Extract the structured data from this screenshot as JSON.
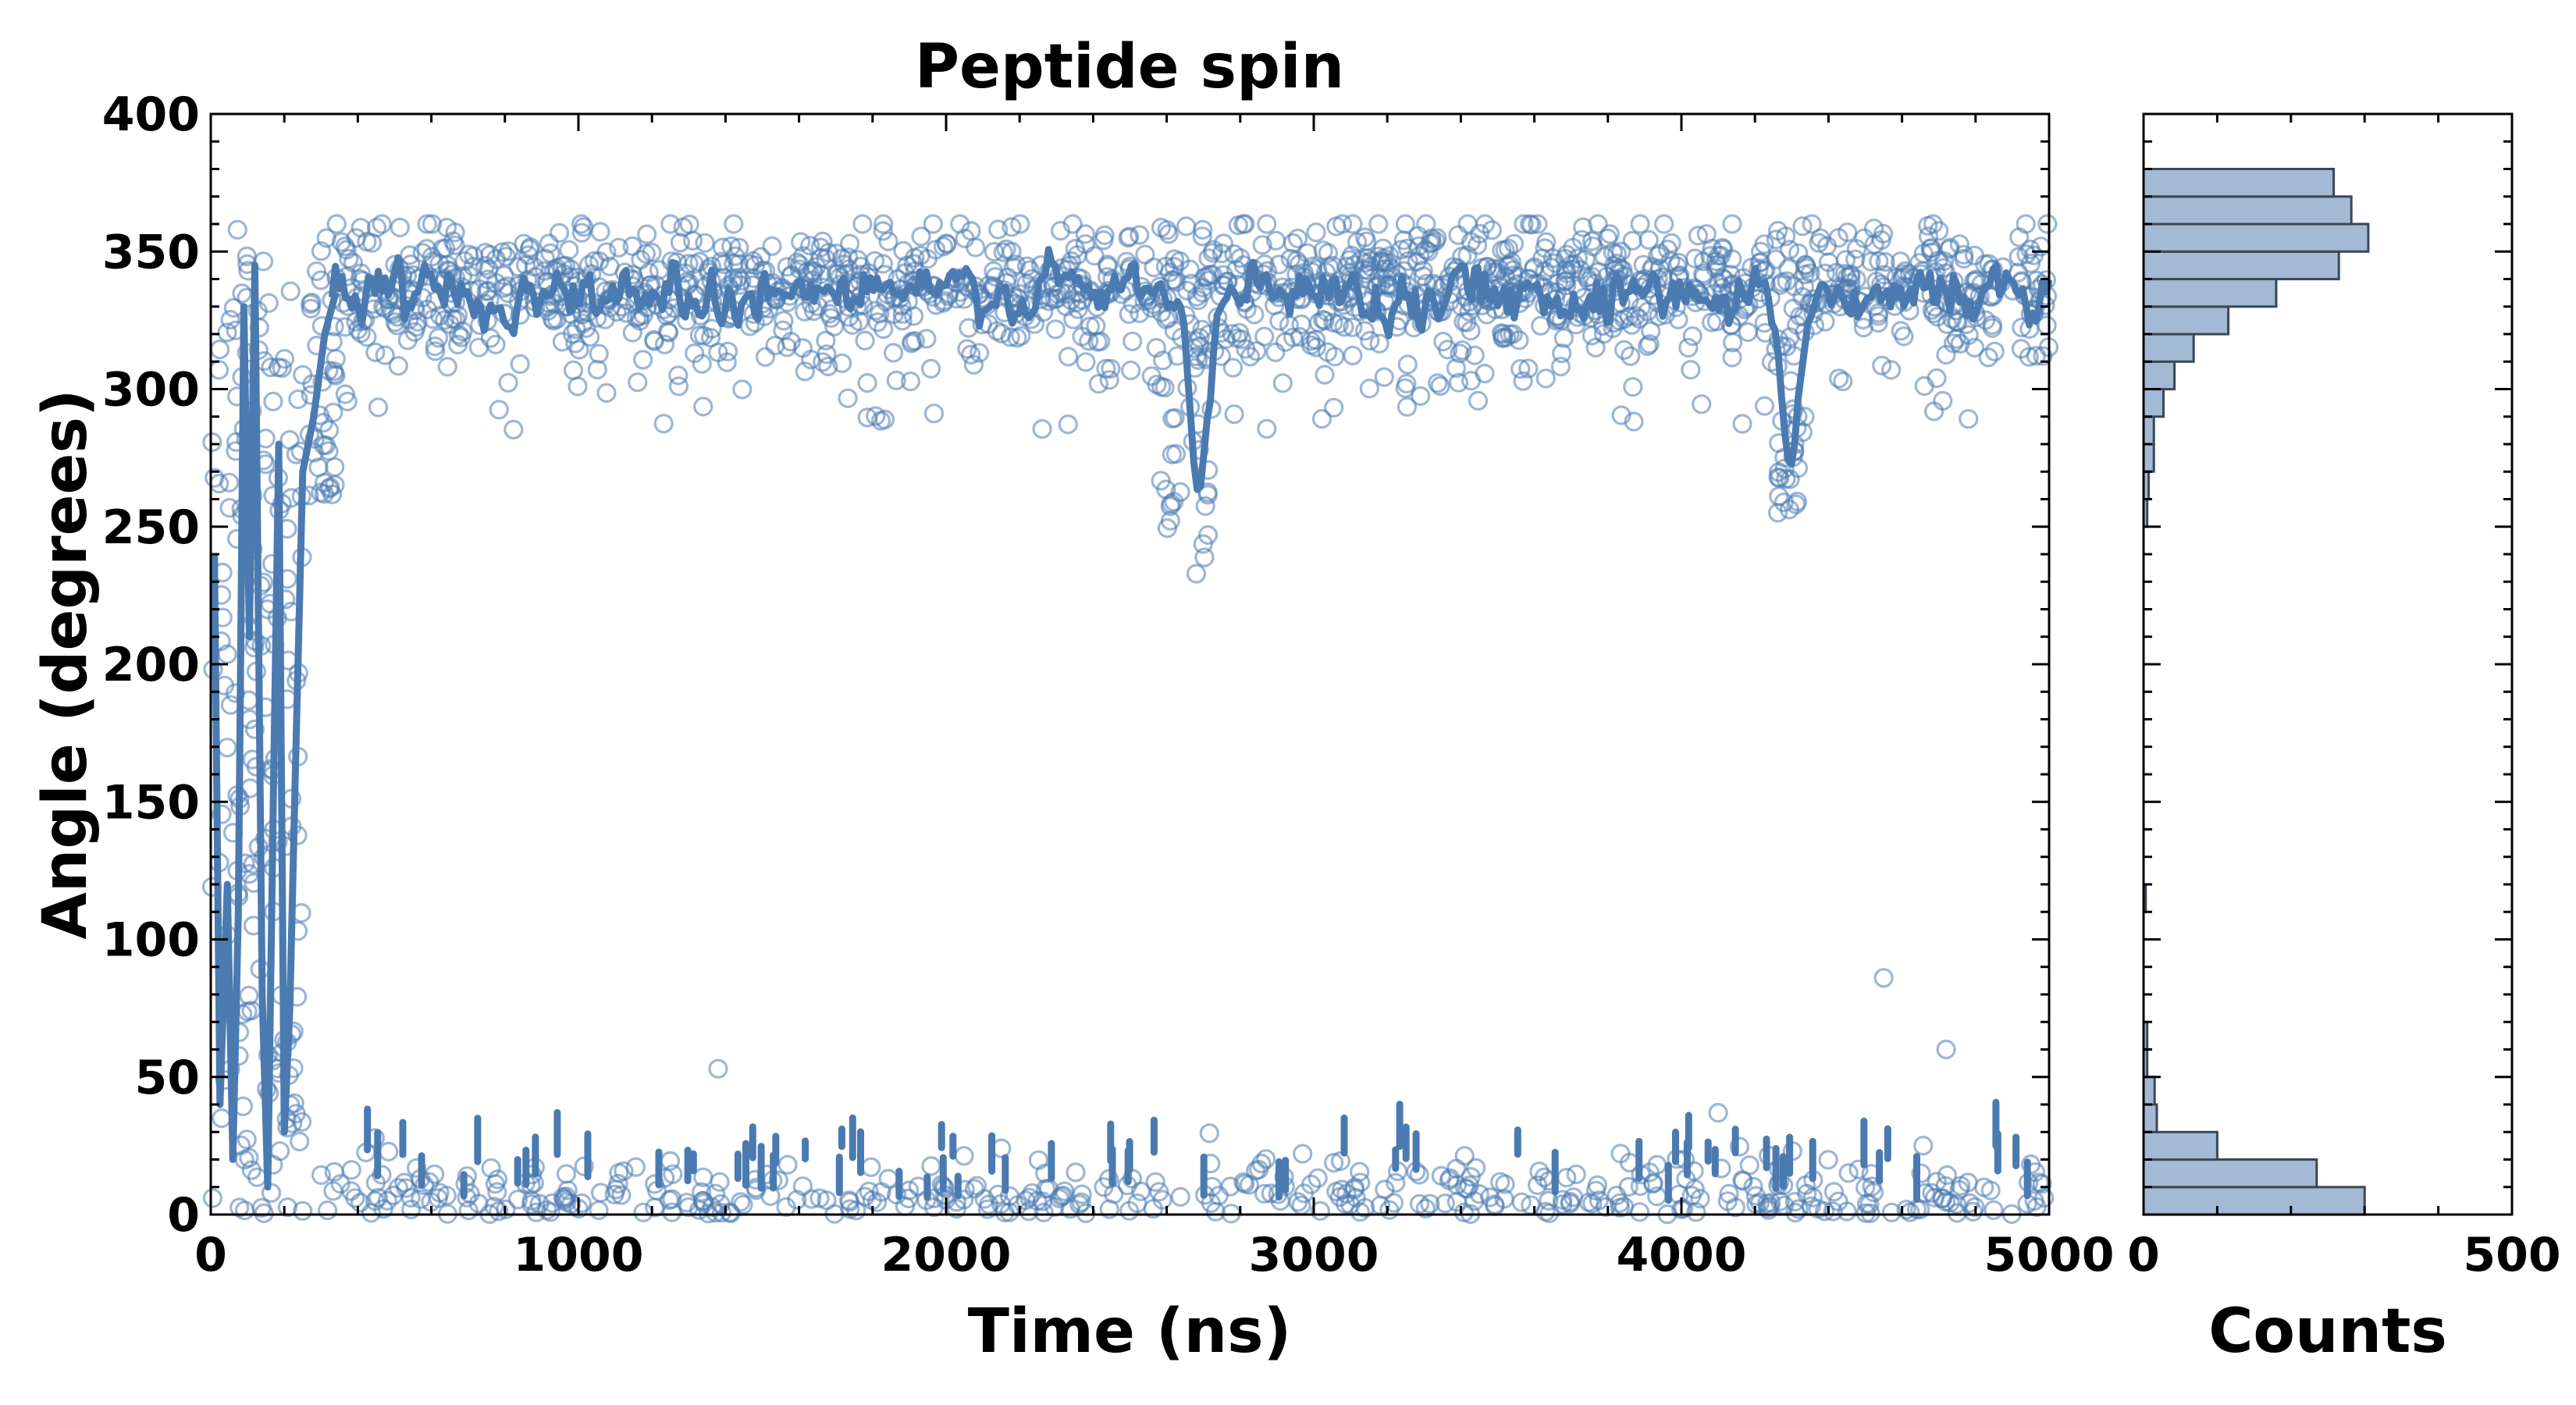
{
  "chart_data": [
    {
      "type": "scatter",
      "title": "Peptide spin",
      "xlabel": "Time (ns)",
      "ylabel": "Angle (degrees)",
      "xlim": [
        0,
        5000
      ],
      "ylim": [
        0,
        400
      ],
      "x_ticks": [
        "0",
        "1000",
        "2000",
        "3000",
        "4000",
        "5000"
      ],
      "y_ticks": [
        "0",
        "50",
        "100",
        "150",
        "200",
        "250",
        "300",
        "350",
        "400"
      ],
      "grid": false,
      "legend": "none",
      "colors": {
        "points": "#4a7ab0",
        "line": "#4a7ab0"
      },
      "series": [
        {
          "style": "open-circles",
          "segments": [
            {
              "x_range": [
                0,
                250
              ],
              "value_range": [
                0,
                360
              ]
            },
            {
              "x_range": [
                250,
                340
              ],
              "value_range": [
                260,
                360
              ]
            },
            {
              "x_range": [
                340,
                5000
              ],
              "value_range": [
                300,
                360
              ]
            },
            {
              "x_range": [
                300,
                5000
              ],
              "value_range": [
                0,
                35
              ]
            }
          ],
          "excursions": [
            {
              "x_range": [
                2580,
                2720
              ],
              "min_value": 225
            },
            {
              "x_range": [
                4260,
                4330
              ],
              "min_value": 253
            }
          ],
          "extra_points": [
            {
              "x": 1380,
              "y": 53
            },
            {
              "x": 4100,
              "y": 37
            },
            {
              "x": 4550,
              "y": 86
            },
            {
              "x": 4720,
              "y": 60
            }
          ]
        },
        {
          "style": "rolling-mean-line",
          "main_level": 335,
          "dips": [
            {
              "x": 2680,
              "y": 253
            },
            {
              "x": 4290,
              "y": 265
            }
          ]
        }
      ]
    },
    {
      "type": "bar",
      "orientation": "horizontal",
      "xlabel": "Counts",
      "xlim": [
        0,
        500
      ],
      "ylim": [
        0,
        400
      ],
      "x_ticks": [
        "0",
        "500"
      ],
      "bin_width": 10,
      "bins": [
        {
          "y": 0,
          "count": 300
        },
        {
          "y": 10,
          "count": 235
        },
        {
          "y": 20,
          "count": 100
        },
        {
          "y": 30,
          "count": 18
        },
        {
          "y": 40,
          "count": 15
        },
        {
          "y": 50,
          "count": 5
        },
        {
          "y": 60,
          "count": 5
        },
        {
          "y": 110,
          "count": 3
        },
        {
          "y": 250,
          "count": 5
        },
        {
          "y": 260,
          "count": 7
        },
        {
          "y": 270,
          "count": 14
        },
        {
          "y": 280,
          "count": 14
        },
        {
          "y": 290,
          "count": 27
        },
        {
          "y": 300,
          "count": 42
        },
        {
          "y": 310,
          "count": 68
        },
        {
          "y": 320,
          "count": 115
        },
        {
          "y": 330,
          "count": 180
        },
        {
          "y": 340,
          "count": 265
        },
        {
          "y": 350,
          "count": 305
        },
        {
          "y": 360,
          "count": 282
        },
        {
          "y": 370,
          "count": 258
        }
      ],
      "colors": {
        "fill": "#a3b9d4",
        "edge": "#3b4656"
      }
    }
  ]
}
